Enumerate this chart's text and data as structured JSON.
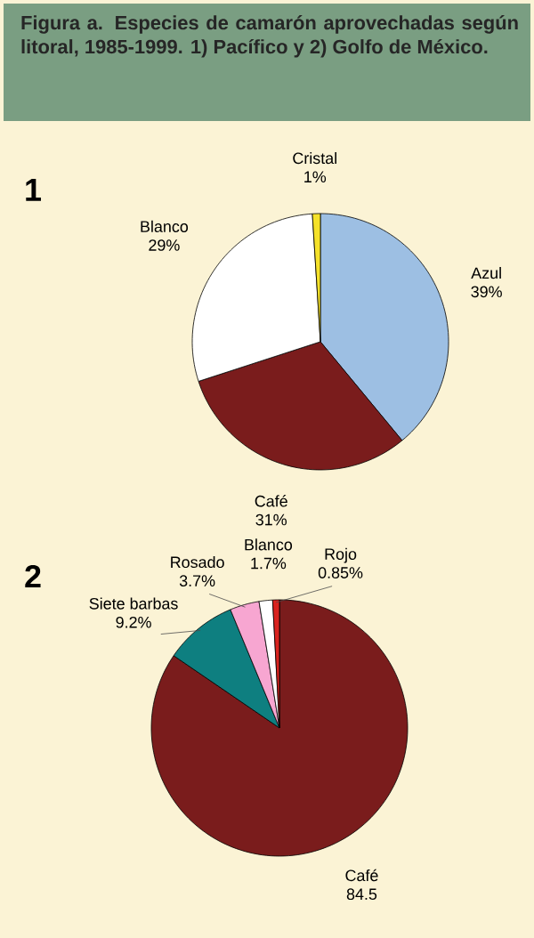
{
  "chart_data": [
    {
      "type": "pie",
      "title": "Figura a. Especies de camarón aprovechadas según litoral, 1985-1999. 1) Pacífico y 2) Golfo de México.",
      "subtitle": "1",
      "categories": [
        "Azul",
        "Café",
        "Blanco",
        "Cristal"
      ],
      "values": [
        39,
        31,
        29,
        1
      ],
      "value_labels": [
        "39%",
        "31%",
        "29%",
        "1%"
      ],
      "colors": [
        "#9dbfe3",
        "#7a1c1c",
        "#ffffff",
        "#f5e22a"
      ]
    },
    {
      "type": "pie",
      "title": "2",
      "categories": [
        "Café",
        "Siete barbas",
        "Rosado",
        "Blanco",
        "Rojo"
      ],
      "values": [
        84.5,
        9.2,
        3.7,
        1.7,
        0.85
      ],
      "value_labels": [
        "84.5",
        "9.2%",
        "3.7%",
        "1.7%",
        "0.85%"
      ],
      "colors": [
        "#7a1c1c",
        "#0e7f80",
        "#f7a6d1",
        "#ffffff",
        "#d9231f"
      ]
    }
  ]
}
